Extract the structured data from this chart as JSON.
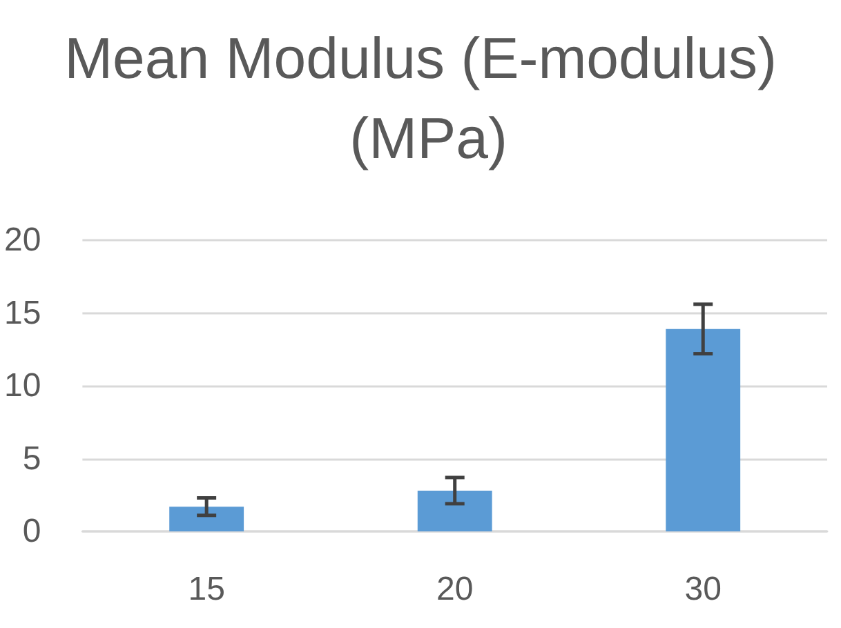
{
  "chart_data": {
    "type": "bar",
    "title": "Mean Modulus (E-modulus) (MPa)",
    "categories": [
      "15",
      "20",
      "30"
    ],
    "values": [
      1.7,
      2.8,
      13.9
    ],
    "errors": [
      0.6,
      0.9,
      1.7
    ],
    "color": "#5b9bd5",
    "ylim": [
      0,
      20
    ],
    "yticks": [
      0,
      5,
      10,
      15,
      20
    ],
    "grid": "y"
  }
}
